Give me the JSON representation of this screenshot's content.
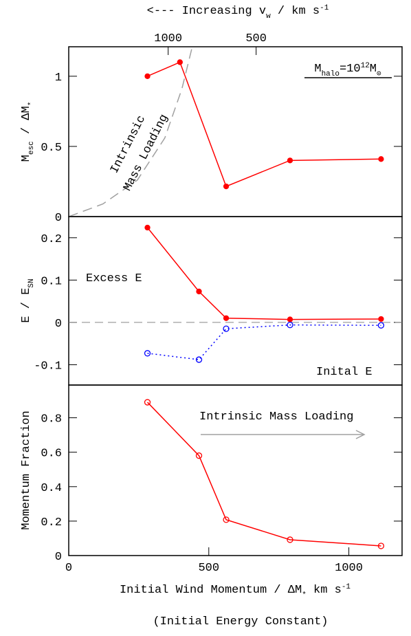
{
  "chart_data": [
    {
      "type": "line",
      "title": [
        {
          "t": "<--- Increasing v"
        },
        {
          "t": "w",
          "s": "sub"
        },
        {
          "t": " / km s"
        },
        {
          "t": "-1",
          "s": "super"
        }
      ],
      "ylabel": [
        {
          "t": "M"
        },
        {
          "t": "esc",
          "s": "sub"
        },
        {
          "t": " / ΔM"
        },
        {
          "t": "*",
          "s": "sub"
        }
      ],
      "xlim": [
        0,
        1190
      ],
      "ylim": [
        0,
        1.21
      ],
      "yticks": [
        0,
        0.5,
        1
      ],
      "x2ticks": [
        {
          "value": 355,
          "label": "1000"
        },
        {
          "value": 669,
          "label": "500"
        }
      ],
      "series": [
        {
          "color": "#ff0000",
          "marker": "filled",
          "linestyle": "solid",
          "x": [
            281,
            397,
            562,
            790,
            1115
          ],
          "values": [
            1.0,
            1.1,
            0.215,
            0.4,
            0.41
          ]
        },
        {
          "color": "#a0a0a0",
          "marker": "none",
          "linestyle": "dashed",
          "x": [
            0,
            122,
            245,
            343,
            404,
            441
          ],
          "values": [
            0,
            0.09,
            0.26,
            0.56,
            0.91,
            1.21
          ]
        }
      ],
      "annotations": [
        "Intrinsic",
        "Mass Loading"
      ],
      "halo_label": [
        {
          "t": "M"
        },
        {
          "t": "halo",
          "s": "sub"
        },
        {
          "t": "=10"
        },
        {
          "t": "12",
          "s": "super"
        },
        {
          "t": "M"
        },
        {
          "t": "⊙",
          "s": "sub"
        }
      ]
    },
    {
      "type": "line",
      "ylabel": [
        {
          "t": "E / E"
        },
        {
          "t": "SN",
          "s": "sub"
        }
      ],
      "xlim": [
        0,
        1190
      ],
      "ylim": [
        -0.148,
        0.25
      ],
      "yticks": [
        -0.1,
        0,
        0.1,
        0.2
      ],
      "reference_line": 0,
      "series": [
        {
          "name": "Excess E",
          "color": "#ff0000",
          "marker": "filled",
          "linestyle": "solid",
          "x": [
            281,
            465,
            562,
            790,
            1115
          ],
          "values": [
            0.224,
            0.073,
            0.01,
            0.007,
            0.008
          ]
        },
        {
          "name": "Inital E",
          "color": "#0000ff",
          "marker": "open",
          "linestyle": "dotted",
          "x": [
            281,
            465,
            562,
            790,
            1115
          ],
          "values": [
            -0.073,
            -0.088,
            -0.015,
            -0.006,
            -0.007
          ]
        }
      ]
    },
    {
      "type": "line",
      "ylabel": [
        {
          "t": "Momentum Fraction"
        }
      ],
      "xlabel": [
        {
          "t": "Initial Wind Momentum / ΔM"
        },
        {
          "t": "*",
          "s": "sub"
        },
        {
          "t": " km s"
        },
        {
          "t": "-1",
          "s": "super"
        }
      ],
      "xlim": [
        0,
        1190
      ],
      "ylim": [
        0,
        0.99
      ],
      "yticks": [
        0,
        0.2,
        0.4,
        0.6,
        0.8
      ],
      "xticks": [
        0,
        500,
        1000
      ],
      "series": [
        {
          "color": "#ff0000",
          "marker": "open",
          "linestyle": "solid",
          "x": [
            281,
            465,
            562,
            790,
            1115
          ],
          "values": [
            0.89,
            0.58,
            0.208,
            0.092,
            0.056
          ]
        }
      ],
      "annotation": "Intrinsic Mass Loading",
      "footnote": "(Initial Energy Constant)"
    }
  ]
}
